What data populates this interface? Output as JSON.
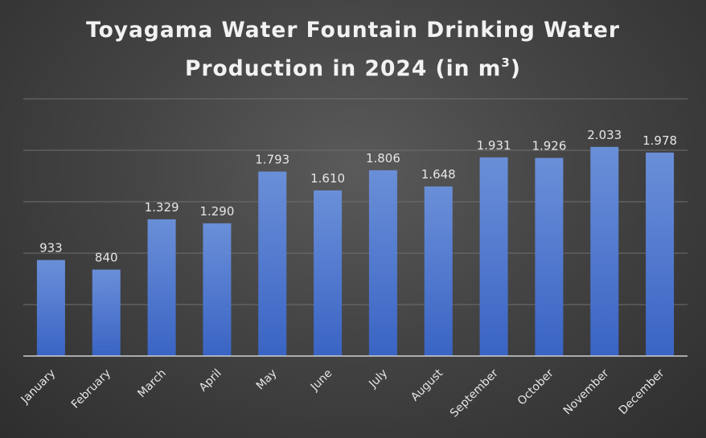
{
  "chart_data": {
    "type": "bar",
    "title_line1": "Toyagama Water Fountain Drinking Water",
    "title_line2_prefix": "Production in 2024 (in m",
    "title_line2_sup": "3",
    "title_line2_suffix": ")",
    "categories": [
      "January",
      "February",
      "March",
      "April",
      "May",
      "June",
      "July",
      "August",
      "September",
      "October",
      "November",
      "December"
    ],
    "values": [
      933,
      840,
      1329,
      1290,
      1793,
      1610,
      1806,
      1648,
      1931,
      1926,
      2033,
      1978
    ],
    "data_labels": [
      "933",
      "840",
      "1.329",
      "1.290",
      "1.793",
      "1.610",
      "1.806",
      "1.648",
      "1.931",
      "1.926",
      "2.033",
      "1.978"
    ],
    "xlabel": "",
    "ylabel": "",
    "ylim": [
      0,
      2500
    ],
    "grid": true,
    "legend": "none",
    "colors": {
      "bar_top": "#6a8fd8",
      "bar_bottom": "#3a64c4"
    }
  }
}
